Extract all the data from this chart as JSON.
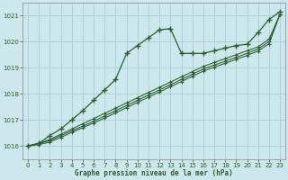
{
  "title": "Graphe pression niveau de la mer (hPa)",
  "bg_color": "#cce8ec",
  "grid_color": "#aacdd4",
  "line_color": "#2d5e2d",
  "xlim": [
    -0.5,
    23.5
  ],
  "ylim": [
    1015.5,
    1021.5
  ],
  "yticks": [
    1016,
    1017,
    1018,
    1019,
    1020,
    1021
  ],
  "xticks": [
    0,
    1,
    2,
    3,
    4,
    5,
    6,
    7,
    8,
    9,
    10,
    11,
    12,
    13,
    14,
    15,
    16,
    17,
    18,
    19,
    20,
    21,
    22,
    23
  ],
  "series": [
    [
      1016.0,
      1016.1,
      1016.4,
      1016.65,
      1017.0,
      1017.35,
      1017.75,
      1018.15,
      1018.55,
      1019.55,
      1019.85,
      1020.15,
      1020.45,
      1020.5,
      1019.55,
      1019.55,
      1019.55,
      1019.65,
      1019.75,
      1019.85,
      1019.9,
      1020.35,
      1020.85,
      1021.15
    ],
    [
      1016.0,
      1016.1,
      1016.25,
      1016.45,
      1016.65,
      1016.85,
      1017.05,
      1017.25,
      1017.45,
      1017.65,
      1017.85,
      1018.05,
      1018.25,
      1018.45,
      1018.65,
      1018.85,
      1019.05,
      1019.2,
      1019.35,
      1019.5,
      1019.65,
      1019.8,
      1020.1,
      1021.05
    ],
    [
      1016.0,
      1016.1,
      1016.2,
      1016.4,
      1016.58,
      1016.76,
      1016.95,
      1017.15,
      1017.35,
      1017.55,
      1017.75,
      1017.95,
      1018.15,
      1018.35,
      1018.55,
      1018.75,
      1018.95,
      1019.1,
      1019.25,
      1019.4,
      1019.55,
      1019.72,
      1020.0,
      1021.05
    ],
    [
      1016.0,
      1016.05,
      1016.15,
      1016.33,
      1016.52,
      1016.7,
      1016.88,
      1017.07,
      1017.27,
      1017.47,
      1017.67,
      1017.87,
      1018.07,
      1018.27,
      1018.47,
      1018.67,
      1018.87,
      1019.02,
      1019.17,
      1019.32,
      1019.47,
      1019.64,
      1019.92,
      1021.05
    ]
  ]
}
